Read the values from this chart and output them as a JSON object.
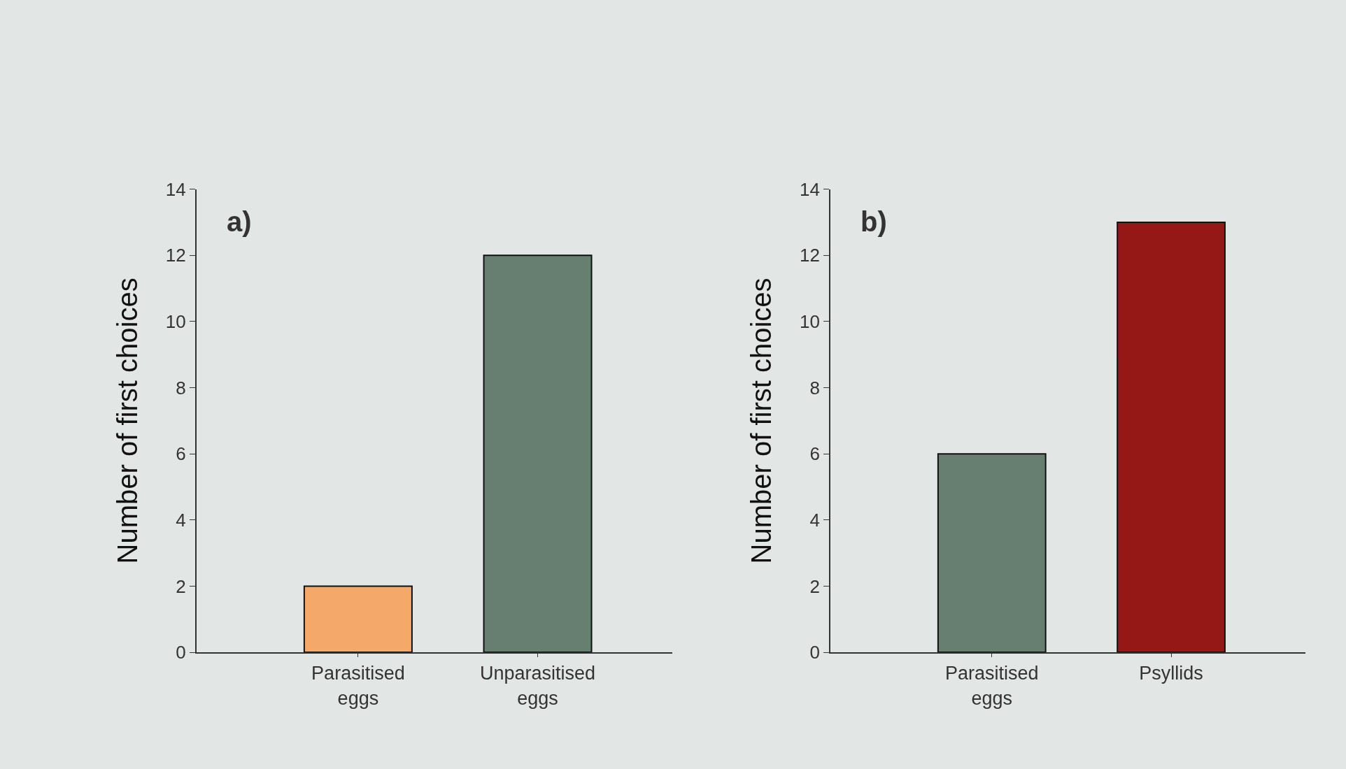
{
  "chart_data": [
    {
      "type": "bar",
      "categories": [
        "Parasitised eggs",
        "Unparasitised eggs"
      ],
      "values": [
        2,
        12
      ],
      "colors": [
        "#f4a96b",
        "#667f70"
      ],
      "ylabel": "Number of first choices",
      "ylim": [
        0,
        14
      ],
      "yticks": [
        0,
        2,
        4,
        6,
        8,
        10,
        12,
        14
      ],
      "annotations": [
        "a)"
      ],
      "grid": false,
      "legend": false
    },
    {
      "type": "bar",
      "categories": [
        "Parasitised eggs",
        "Psyllids"
      ],
      "values": [
        6,
        13
      ],
      "colors": [
        "#667f70",
        "#951716"
      ],
      "ylabel": "Number of first choices",
      "ylim": [
        0,
        14
      ],
      "yticks": [
        0,
        2,
        4,
        6,
        8,
        10,
        12,
        14
      ],
      "annotations": [
        "b)"
      ],
      "grid": false,
      "legend": false
    }
  ]
}
